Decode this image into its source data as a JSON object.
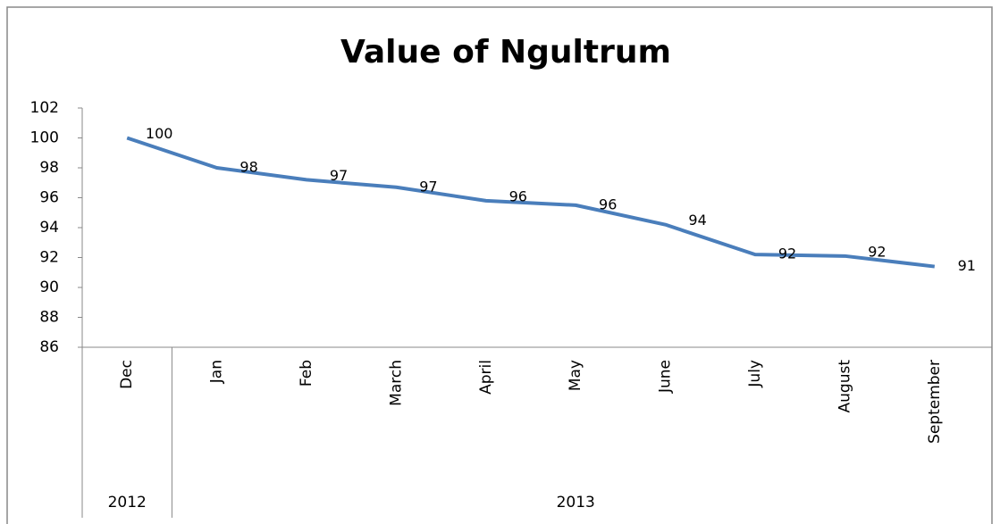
{
  "chart_data": {
    "type": "line",
    "title": "Value of Ngultrum",
    "categories": [
      "Dec",
      "Jan",
      "Feb",
      "March",
      "April",
      "May",
      "June",
      "July",
      "August",
      "September"
    ],
    "groups": [
      {
        "label": "2012",
        "count": 1
      },
      {
        "label": "2013",
        "count": 9
      }
    ],
    "series": [
      {
        "name": "Value",
        "color": "#4a7ebb",
        "values": [
          100,
          98.0,
          97.2,
          96.7,
          95.8,
          95.5,
          94.2,
          92.2,
          92.1,
          91.4
        ],
        "value_labels": [
          "100",
          "98",
          "97",
          "97",
          "96",
          "96",
          "94",
          "92",
          "92",
          "91"
        ]
      }
    ],
    "ylim": [
      86,
      102
    ],
    "yticks": [
      86,
      88,
      90,
      92,
      94,
      96,
      98,
      100,
      102
    ],
    "grid": false
  }
}
